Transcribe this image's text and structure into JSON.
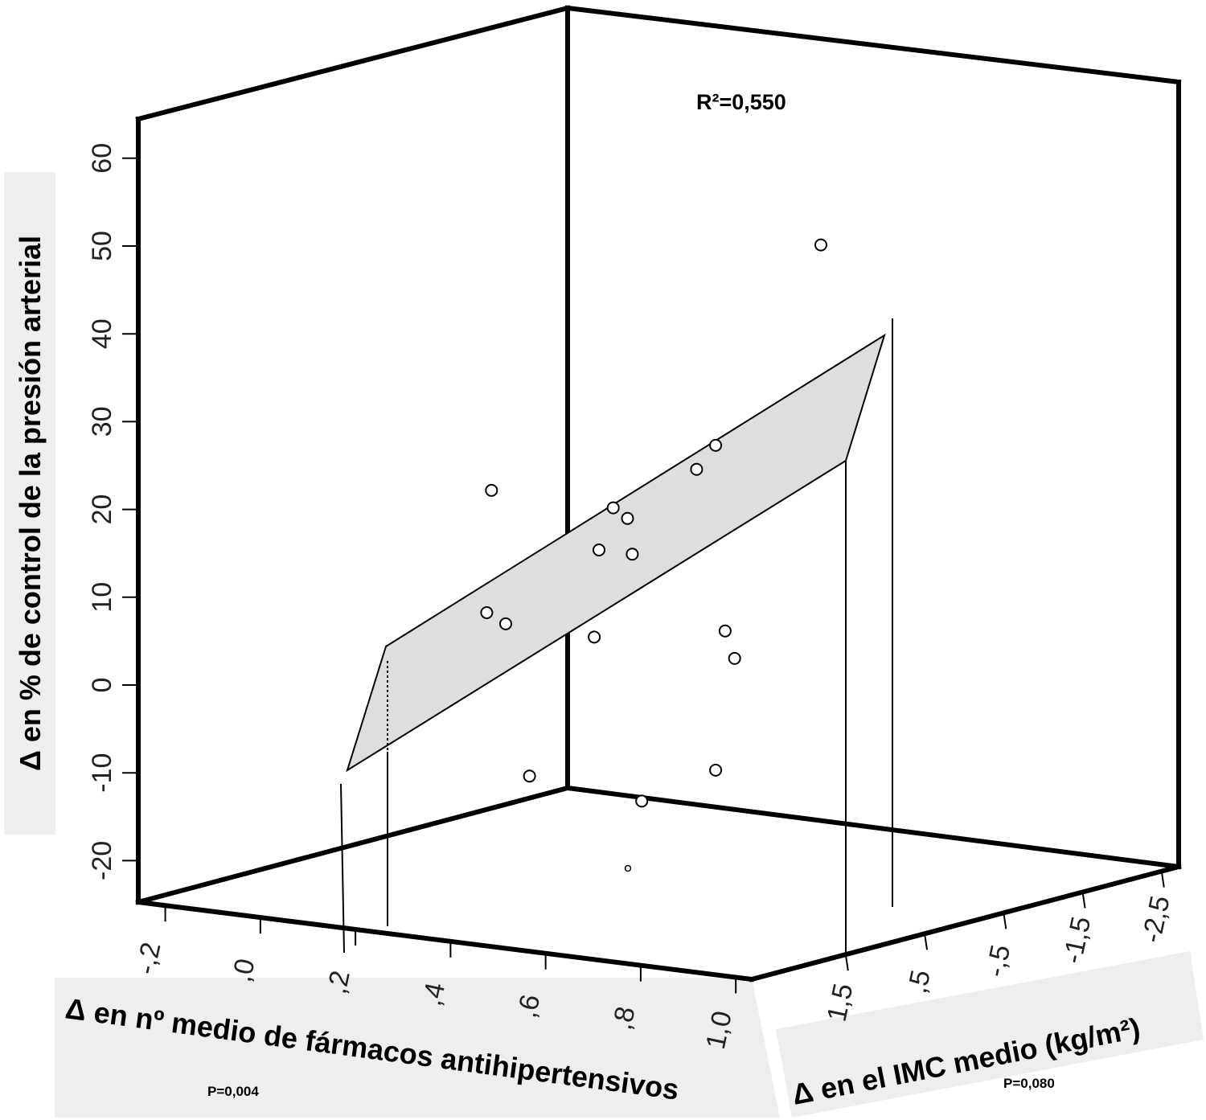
{
  "chart_data": {
    "type": "scatter",
    "subtype": "3d-scatter-with-regression-plane",
    "annotation": "R²=0,550",
    "xlabel": "Δ en nº medio de fármacos antihipertensivos",
    "zlabel": "Δ en el IMC medio (kg/m²)",
    "ylabel": "Δ en % de control de la presión arterial",
    "x_pvalue": "P=0,004",
    "z_pvalue": "P=0,080",
    "x_ticks": [
      "-,2",
      ",0",
      ",2",
      ",4",
      ",6",
      ",8",
      "1,0"
    ],
    "z_ticks": [
      "1,5",
      ",5",
      "-,5",
      "-1,5",
      "-2,5"
    ],
    "y_ticks": [
      "60",
      "50",
      "40",
      "30",
      "20",
      "10",
      "0",
      "-10",
      "-20"
    ],
    "xlim": [
      -0.2,
      1.0
    ],
    "zlim": [
      1.5,
      -2.5
    ],
    "ylim": [
      -20,
      60
    ],
    "points": [
      {
        "x": 0.41,
        "z": 0.9,
        "y": 27
      },
      {
        "x": 0.4,
        "z": 0.9,
        "y": 13
      },
      {
        "x": 0.44,
        "z": 0.9,
        "y": 12
      },
      {
        "x": 0.49,
        "z": 0.9,
        "y": -5
      },
      {
        "x": 0.59,
        "z": 0.3,
        "y": 25
      },
      {
        "x": 0.62,
        "z": 0.3,
        "y": 24
      },
      {
        "x": 0.56,
        "z": 0.3,
        "y": 20
      },
      {
        "x": 0.63,
        "z": 0.3,
        "y": 20
      },
      {
        "x": 0.55,
        "z": 0.3,
        "y": 10
      },
      {
        "x": 0.65,
        "z": 0.3,
        "y": -8
      },
      {
        "x": 0.74,
        "z": 0.1,
        "y": 30
      },
      {
        "x": 0.78,
        "z": 0.1,
        "y": 33
      },
      {
        "x": 0.8,
        "z": 0.1,
        "y": 12
      },
      {
        "x": 0.82,
        "z": 0.1,
        "y": 9
      },
      {
        "x": 0.78,
        "z": 0.1,
        "y": -4
      },
      {
        "x": 0.9,
        "z": -0.7,
        "y": 55
      }
    ],
    "grid": false
  }
}
